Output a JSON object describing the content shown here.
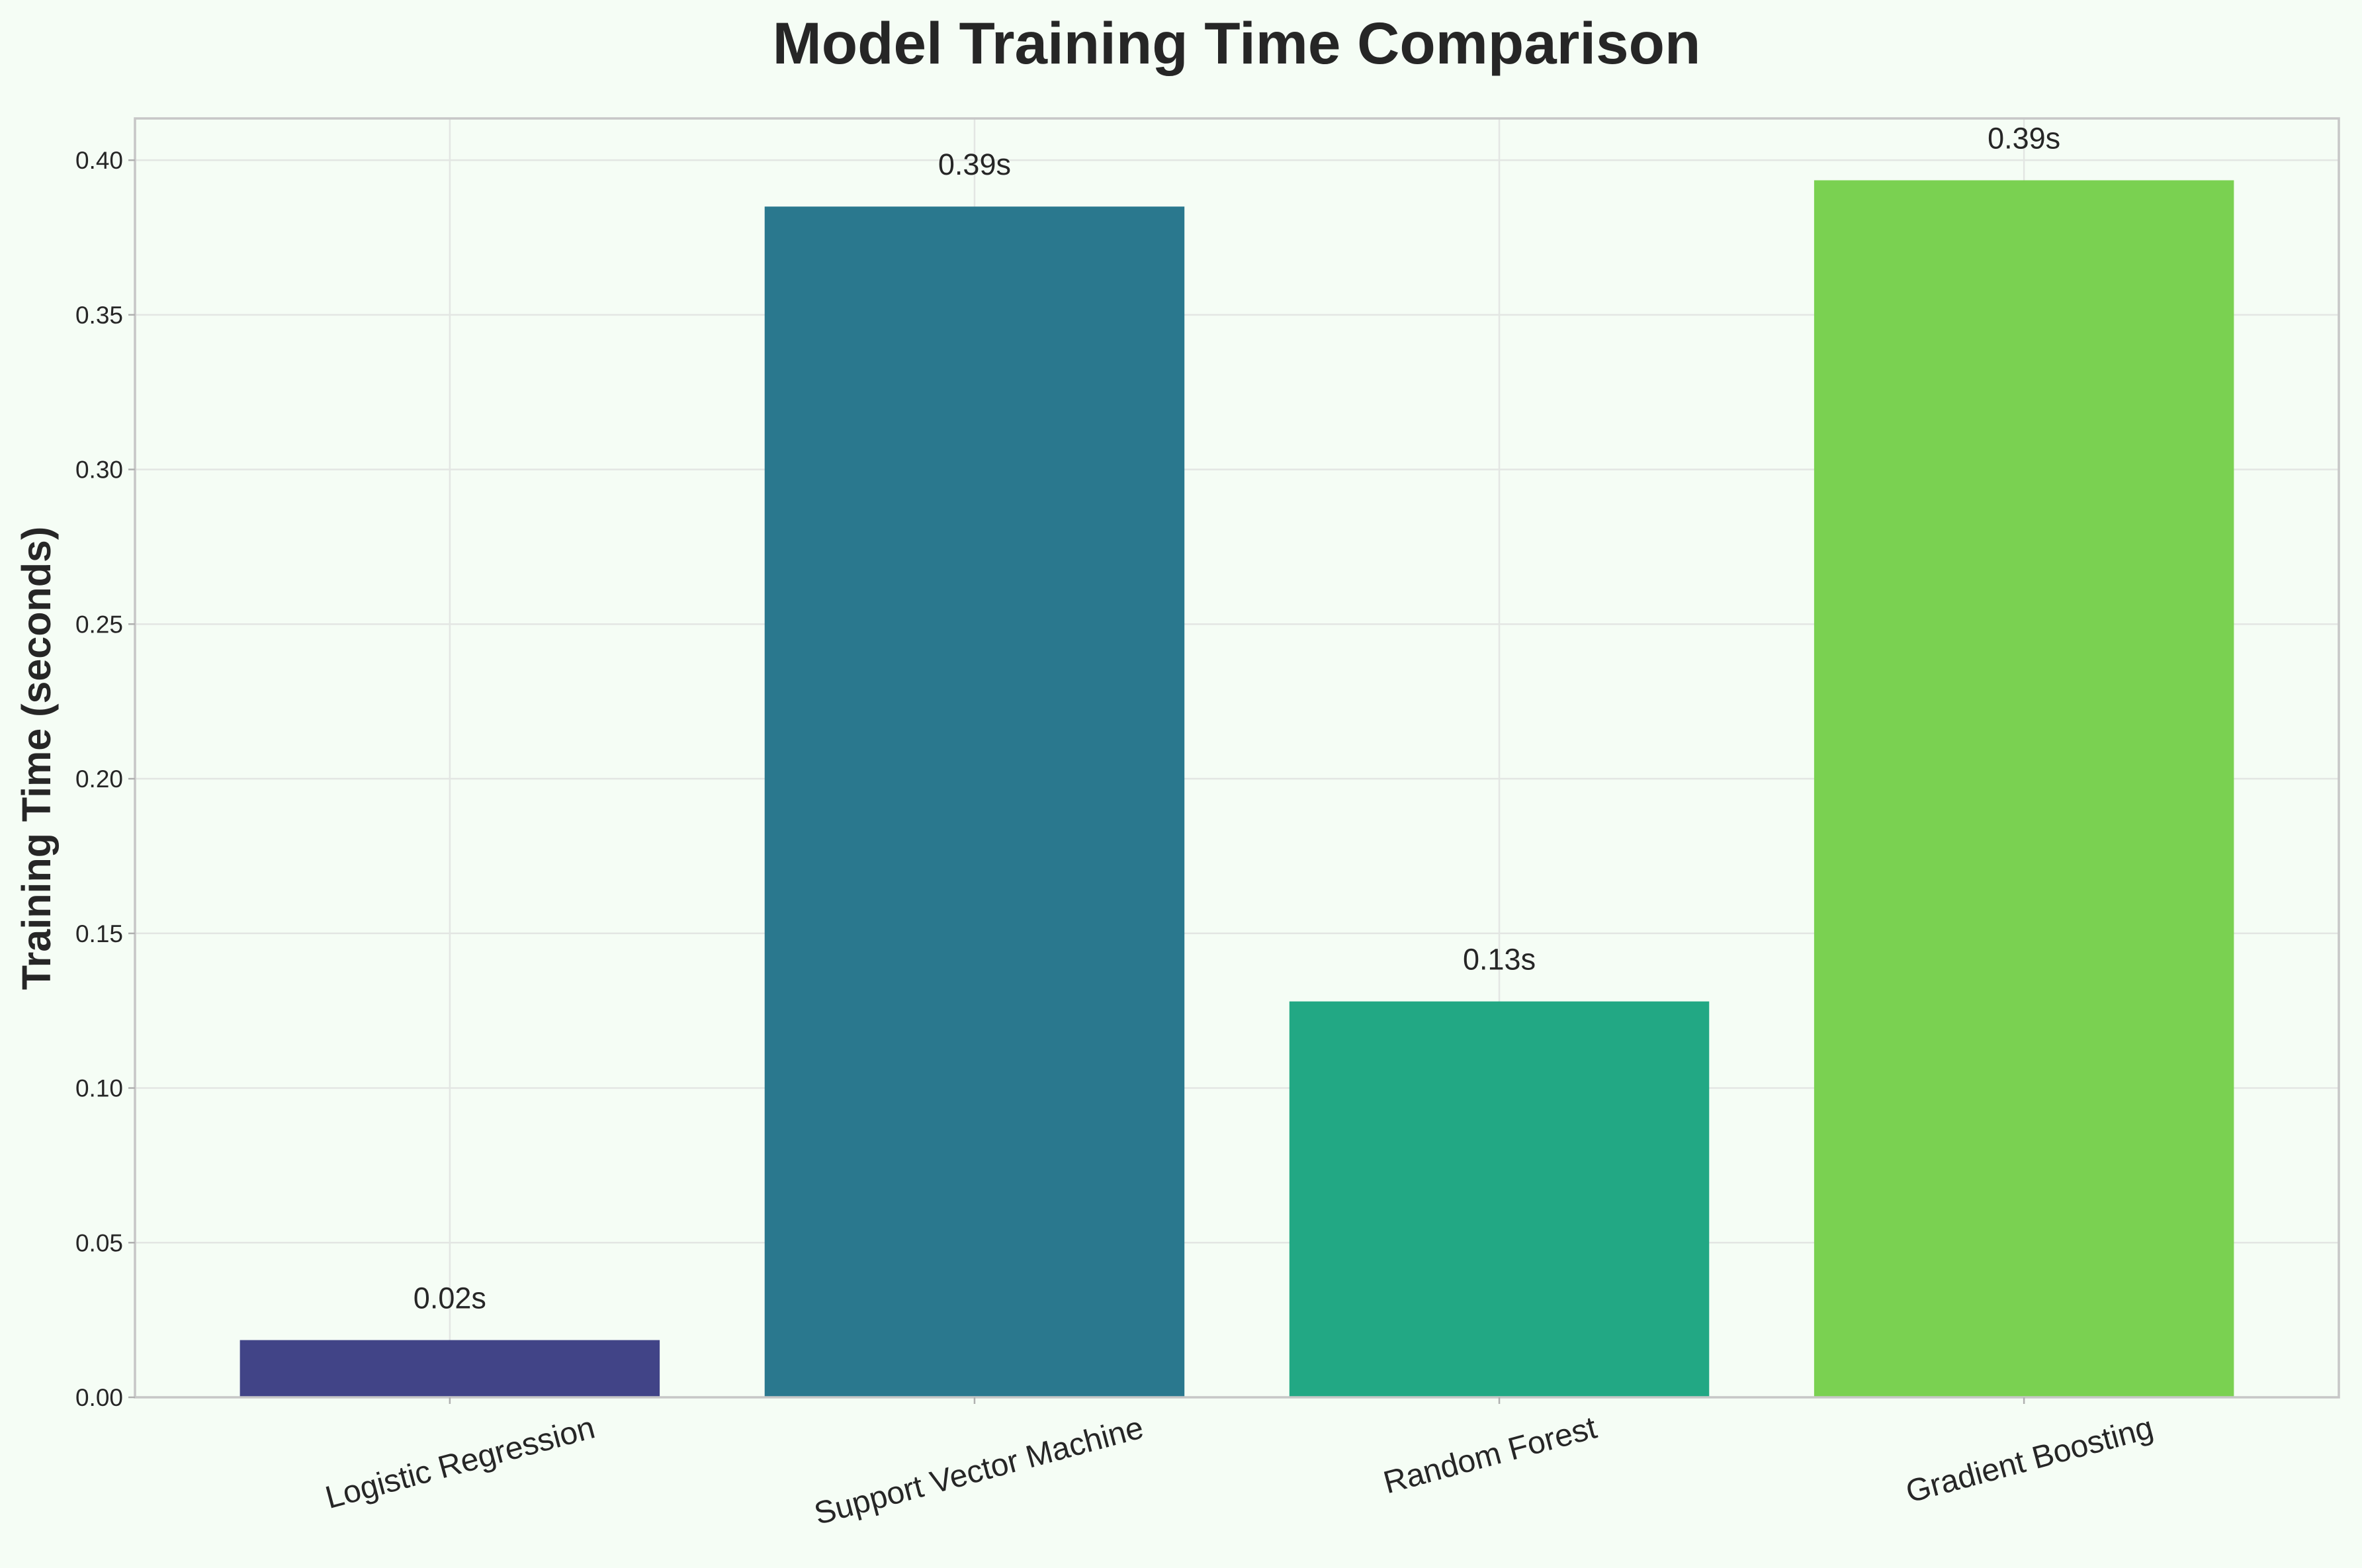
{
  "chart_data": {
    "type": "bar",
    "title": "Model Training Time Comparison",
    "xlabel": "",
    "ylabel": "Training Time (seconds)",
    "categories": [
      "Logistic Regression",
      "Support Vector Machine",
      "Random Forest",
      "Gradient Boosting"
    ],
    "values": [
      0.0185,
      0.385,
      0.128,
      0.3935
    ],
    "data_labels": [
      "0.02s",
      "0.39s",
      "0.13s",
      "0.39s"
    ],
    "colors": [
      "#414487",
      "#2a788e",
      "#22a884",
      "#7ad151"
    ],
    "ylim": [
      0,
      0.4135
    ],
    "yticks": [
      0.0,
      0.05,
      0.1,
      0.15,
      0.2,
      0.25,
      0.3,
      0.35,
      0.4
    ],
    "ytick_labels": [
      "0.00",
      "0.05",
      "0.10",
      "0.15",
      "0.20",
      "0.25",
      "0.30",
      "0.35",
      "0.40"
    ],
    "grid": true,
    "background": "#f5fdf5"
  }
}
